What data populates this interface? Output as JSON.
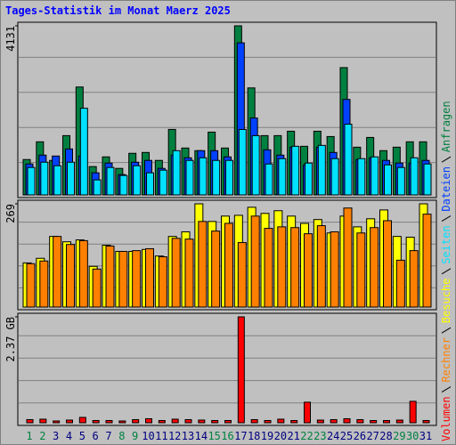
{
  "chart_data": [
    {
      "type": "bar",
      "title": "Tages-Statistik im Monat Maerz 2025",
      "ylim": [
        0,
        4131
      ],
      "yticks": [
        4131
      ],
      "grid": true,
      "series": [
        {
          "name": "Anfragen",
          "color": "#008040",
          "values": [
            864,
            1297,
            843,
            1448,
            2636,
            692,
            929,
            648,
            1016,
            1037,
            843,
            1600,
            1145,
            1081,
            1534,
            1145,
            4131,
            2614,
            1448,
            1448,
            1556,
            1188,
            1556,
            1426,
            3110,
            1166,
            1404,
            1081,
            1166,
            1297,
            1297
          ]
        },
        {
          "name": "Dateien",
          "color": "#0040ff",
          "values": [
            756,
            972,
            950,
            1123,
            950,
            540,
            778,
            497,
            799,
            843,
            648,
            972,
            907,
            1081,
            1081,
            929,
            3715,
            1879,
            1102,
            972,
            1166,
            734,
            1166,
            1037,
            2333,
            864,
            907,
            843,
            778,
            778,
            843
          ]
        },
        {
          "name": "Seiten",
          "color": "#00e0ff",
          "values": [
            670,
            799,
            713,
            799,
            2117,
            367,
            670,
            475,
            713,
            540,
            605,
            1081,
            843,
            907,
            843,
            843,
            1598,
            1447,
            756,
            886,
            1188,
            778,
            1210,
            886,
            1728,
            886,
            929,
            734,
            670,
            907,
            756
          ]
        }
      ]
    },
    {
      "type": "bar",
      "ylim": [
        0,
        269
      ],
      "yticks": [
        269
      ],
      "grid": true,
      "series": [
        {
          "name": "Besuche",
          "color": "#ffff00",
          "values": [
            115,
            127,
            184,
            170,
            175,
            106,
            161,
            145,
            145,
            150,
            133,
            184,
            196,
            269,
            223,
            237,
            239,
            260,
            244,
            251,
            237,
            218,
            228,
            193,
            237,
            209,
            230,
            253,
            184,
            182,
            269
          ]
        },
        {
          "name": "Rechner",
          "color": "#ff8000",
          "values": [
            113,
            120,
            184,
            163,
            173,
            99,
            159,
            145,
            147,
            152,
            131,
            179,
            177,
            223,
            198,
            218,
            168,
            237,
            205,
            209,
            207,
            191,
            212,
            196,
            258,
            193,
            207,
            225,
            122,
            147,
            242
          ]
        }
      ]
    },
    {
      "type": "bar",
      "ylim": [
        0,
        2.37
      ],
      "yticks": [
        {
          "value": 2.37,
          "label": "2.37 GB"
        }
      ],
      "grid": true,
      "categories": [
        "1",
        "2",
        "3",
        "4",
        "5",
        "6",
        "7",
        "8",
        "9",
        "10",
        "11",
        "12",
        "13",
        "14",
        "15",
        "16",
        "17",
        "18",
        "19",
        "20",
        "21",
        "22",
        "23",
        "24",
        "25",
        "26",
        "27",
        "28",
        "29",
        "30",
        "31"
      ],
      "category_colors": [
        "#008040",
        "#008040",
        "#000080",
        "#000080",
        "#000080",
        "#000080",
        "#000080",
        "#008040",
        "#008040",
        "#000080",
        "#000080",
        "#000080",
        "#000080",
        "#000080",
        "#008040",
        "#008040",
        "#000080",
        "#000080",
        "#000080",
        "#000080",
        "#000080",
        "#008040",
        "#008040",
        "#000080",
        "#000080",
        "#000080",
        "#000080",
        "#000080",
        "#008040",
        "#008040",
        "#000080"
      ],
      "series": [
        {
          "name": "Volumen",
          "color": "#ff0000",
          "values": [
            0.07,
            0.08,
            0.04,
            0.06,
            0.12,
            0.05,
            0.05,
            0.04,
            0.07,
            0.09,
            0.05,
            0.08,
            0.07,
            0.06,
            0.05,
            0.05,
            2.37,
            0.07,
            0.05,
            0.08,
            0.05,
            0.46,
            0.06,
            0.07,
            0.09,
            0.07,
            0.05,
            0.05,
            0.06,
            0.48,
            0.05
          ]
        }
      ]
    }
  ]
}
